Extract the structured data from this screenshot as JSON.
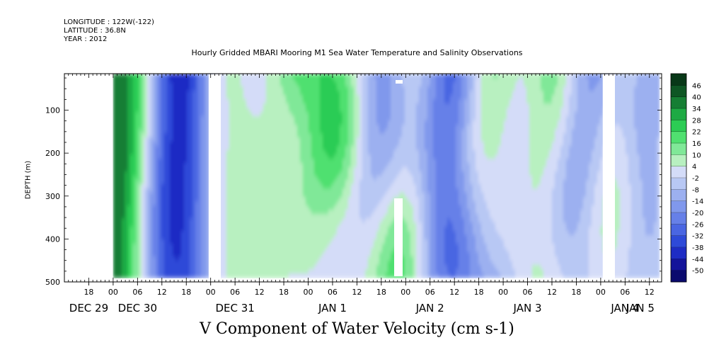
{
  "header": {
    "longitude": "LONGITUDE : 122W(-122)",
    "latitude": "LATITUDE : 36.8N",
    "year": "YEAR : 2012"
  },
  "chart_data": {
    "type": "heatmap",
    "title": "Hourly Gridded MBARI Mooring M1 Sea Water Temperature and Salinity Observations",
    "xlabel": "V Component of Water Velocity (cm s-1)",
    "ylabel": "DEPTH (m)",
    "ylim": [
      500,
      15
    ],
    "yticks": [
      100,
      200,
      300,
      400,
      500
    ],
    "xrange_hours": [
      -12,
      135
    ],
    "xticks": [
      {
        "h": -6,
        "label": "18"
      },
      {
        "h": 0,
        "label": "00"
      },
      {
        "h": 6,
        "label": "06"
      },
      {
        "h": 12,
        "label": "12"
      },
      {
        "h": 18,
        "label": "18"
      },
      {
        "h": 24,
        "label": "00"
      },
      {
        "h": 30,
        "label": "06"
      },
      {
        "h": 36,
        "label": "12"
      },
      {
        "h": 42,
        "label": "18"
      },
      {
        "h": 48,
        "label": "00"
      },
      {
        "h": 54,
        "label": "06"
      },
      {
        "h": 60,
        "label": "12"
      },
      {
        "h": 66,
        "label": "18"
      },
      {
        "h": 72,
        "label": "00"
      },
      {
        "h": 78,
        "label": "06"
      },
      {
        "h": 84,
        "label": "12"
      },
      {
        "h": 90,
        "label": "18"
      },
      {
        "h": 96,
        "label": "00"
      },
      {
        "h": 102,
        "label": "06"
      },
      {
        "h": 108,
        "label": "12"
      },
      {
        "h": 114,
        "label": "18"
      },
      {
        "h": 120,
        "label": "00"
      },
      {
        "h": 126,
        "label": "06"
      },
      {
        "h": 132,
        "label": "12"
      }
    ],
    "date_labels": [
      {
        "h": -6,
        "label": "DEC 29"
      },
      {
        "h": 6,
        "label": "DEC 30"
      },
      {
        "h": 30,
        "label": "DEC 31"
      },
      {
        "h": 54,
        "label": "JAN  1"
      },
      {
        "h": 78,
        "label": "JAN  2"
      },
      {
        "h": 102,
        "label": "JAN  3"
      },
      {
        "h": 126,
        "label": "JAN  4"
      },
      {
        "h": 150,
        "label": "JAN  5"
      }
    ],
    "data_start_h": 0,
    "data_end_h": 134,
    "gaps_h": [
      [
        23.5,
        26.5
      ],
      [
        120.5,
        123.5
      ]
    ],
    "colorbar": {
      "levels": [
        -50,
        -44,
        -38,
        -32,
        -26,
        -20,
        -14,
        -8,
        -2,
        4,
        10,
        16,
        22,
        28,
        34,
        40,
        46
      ],
      "labels": [
        "46",
        "40",
        "34",
        "28",
        "22",
        "16",
        "10",
        "4",
        "-2",
        "-8",
        "-14",
        "-20",
        "-26",
        "-32",
        "-38",
        "-44",
        "-50"
      ],
      "colors": [
        "#0a0a6e",
        "#14149a",
        "#1e2cc4",
        "#2e4ad8",
        "#4a66e2",
        "#6680e8",
        "#8098ec",
        "#9cb0f0",
        "#b8c8f4",
        "#d4dcf8",
        "#b8f0c0",
        "#80e898",
        "#50e070",
        "#2ccc54",
        "#1eaa44",
        "#167e34",
        "#0e5624",
        "#083818"
      ]
    }
  }
}
